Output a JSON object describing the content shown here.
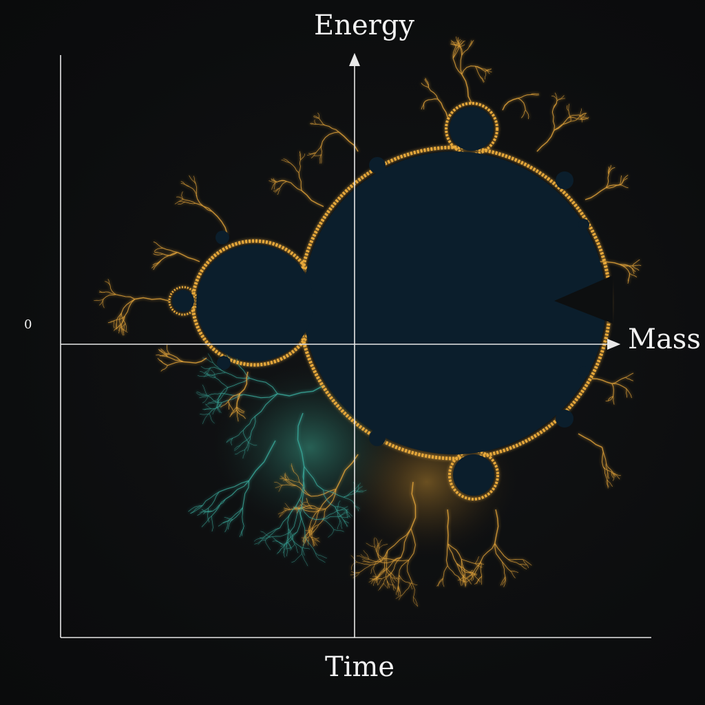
{
  "axes": {
    "y_label": "Energy",
    "x_label": "Mass",
    "bottom_label": "Time",
    "origin_tick": "0"
  },
  "colors": {
    "background": "#0d0f10",
    "set_fill": "#0b1e2c",
    "edge_gold": "#e8a93a",
    "edge_teal": "#2e8a8a",
    "axis": "#e8e8e8"
  }
}
